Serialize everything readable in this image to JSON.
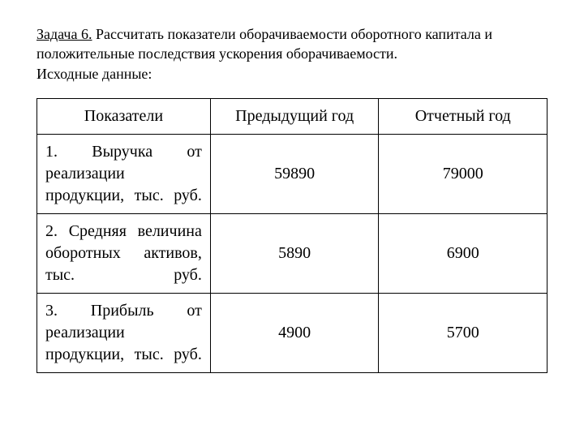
{
  "task": {
    "title_prefix": "Задача 6.",
    "title_rest": " Рассчитать показатели оборачиваемости оборотного капитала и положительные последствия ускорения оборачиваемости.",
    "subtitle": "Исходные данные:"
  },
  "table": {
    "columns": [
      "Показатели",
      "Предыдущий  год",
      "Отчетный год"
    ],
    "rows": [
      {
        "indicator": "1. Выручка от реализации продукции, тыс. руб.",
        "prev_year": "59890",
        "report_year": "79000"
      },
      {
        "indicator": "2. Средняя величина оборотных активов, тыс. руб.",
        "prev_year": "5890",
        "report_year": "6900"
      },
      {
        "indicator": "3. Прибыль от реализации продукции, тыс. руб.",
        "prev_year": "4900",
        "report_year": "5700"
      }
    ],
    "styling": {
      "border_color": "#000000",
      "background_color": "#ffffff",
      "text_color": "#000000",
      "header_fontsize": 20,
      "cell_fontsize": 20,
      "task_fontsize": 18,
      "col_widths_pct": [
        34,
        33,
        33
      ],
      "indicator_align": "justify",
      "value_align": "center"
    }
  }
}
